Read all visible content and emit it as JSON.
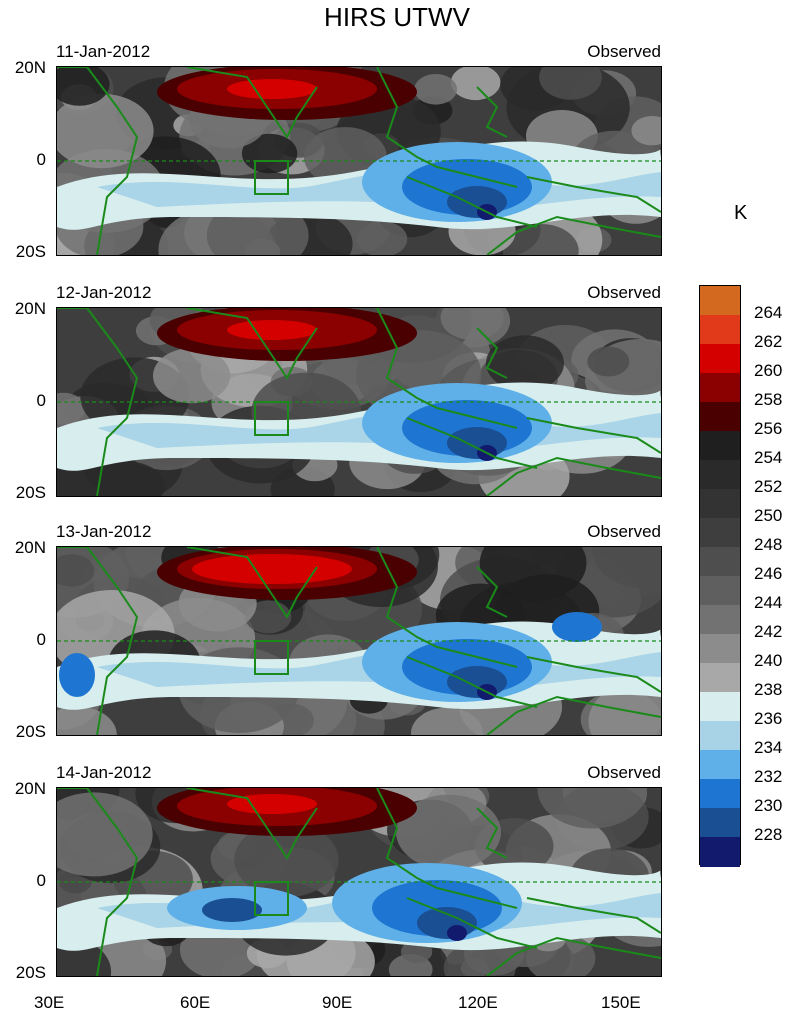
{
  "title": "HIRS UTWV",
  "unit": "K",
  "panels": [
    {
      "date": "11-Jan-2012",
      "tag": "Observed"
    },
    {
      "date": "12-Jan-2012",
      "tag": "Observed"
    },
    {
      "date": "13-Jan-2012",
      "tag": "Observed"
    },
    {
      "date": "14-Jan-2012",
      "tag": "Observed"
    }
  ],
  "lat_labels": {
    "north": "20N",
    "equator": "0",
    "south": "20S"
  },
  "lon_labels": [
    "30E",
    "60E",
    "90E",
    "120E",
    "150E"
  ],
  "colorbar": {
    "labels": [
      "264",
      "262",
      "260",
      "258",
      "256",
      "254",
      "252",
      "250",
      "248",
      "246",
      "244",
      "242",
      "240",
      "238",
      "236",
      "234",
      "232",
      "230",
      "228"
    ],
    "colors": [
      "#d2691e",
      "#e03a1a",
      "#d40000",
      "#8b0000",
      "#4a0000",
      "#1f1f1f",
      "#2a2a2a",
      "#333333",
      "#3e3e3e",
      "#4e4e4e",
      "#5f5f5f",
      "#727272",
      "#8c8c8c",
      "#a8a8a8",
      "#d8eeee",
      "#a8d2e6",
      "#5fb0e8",
      "#1e76d2",
      "#1a4f94",
      "#121a6e"
    ]
  },
  "palette": {
    "coast": "#1a8a1a",
    "box": "#1a8a1a"
  }
}
